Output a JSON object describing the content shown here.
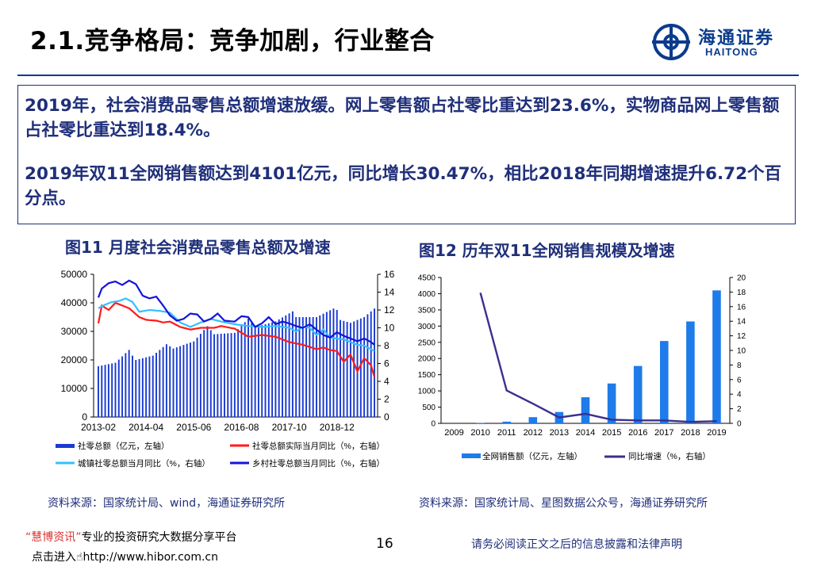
{
  "header": {
    "title": "2.1.竞争格局：竞争加剧，行业整合",
    "logo_text": "海通证券",
    "logo_sub": "HAITONG"
  },
  "textbox": {
    "para1": "2019年，社会消费品零售总额增速放缓。网上零售额占社零比重达到23.6%，实物商品网上零售额占社零比重达到18.4%。",
    "para2": "2019年双11全网销售额达到4101亿元，同比增长30.47%，相比2018年同期增速提升6.72个百分点。"
  },
  "fig11": {
    "title": "图11 月度社会消费品零售总额及增速",
    "source": "资料来源：国家统计局、wind，海通证券研究所"
  },
  "fig12": {
    "title": "图12  历年双11全网销售规模及增速",
    "source": "资料来源：国家统计局、星图数据公众号，海通证券研究所"
  },
  "footer": {
    "quote_name": "“慧博资讯”",
    "tagline": "专业的投资研究大数据分享平台",
    "link_prefix": "点击进入",
    "link_url": "http://www.hibor.com.cn",
    "page_number": "16",
    "disclaimer": "请务必阅读正文之后的信息披露和法律声明"
  },
  "colors": {
    "navy": "#1f2f7a",
    "bar_blue": "#1a3bd1",
    "red": "#ff1a1a",
    "light_blue": "#33c1ff",
    "dark_blue": "#1414d9",
    "bar2": "#1e7bea",
    "line2": "#3b2f8f"
  },
  "chart_data": [
    {
      "type": "bar",
      "title": "",
      "x_tick_labels": [
        "2013-02",
        "2014-04",
        "2015-06",
        "2016-08",
        "2017-10",
        "2018-12"
      ],
      "ylim_left": [
        0,
        50000
      ],
      "ylim_right": [
        0,
        16
      ],
      "y_ticks_left": [
        "0",
        "10000",
        "20000",
        "30000",
        "40000",
        "50000"
      ],
      "y_ticks_right": [
        "0",
        "2",
        "4",
        "6",
        "8",
        "10",
        "12",
        "14",
        "16"
      ],
      "legend": [
        {
          "name": "社零总额（亿元，左轴）",
          "color": "#1a3bd1",
          "kind": "bar"
        },
        {
          "name": "社零总额实际当月同比（%，右轴）",
          "color": "#ff1a1a",
          "kind": "line"
        },
        {
          "name": "城镇社零总额当月同比（%，右轴）",
          "color": "#33c1ff",
          "kind": "line"
        },
        {
          "name": "乡村社零总额当月同比（%，右轴）",
          "color": "#1414d9",
          "kind": "line"
        }
      ],
      "series": [
        {
          "name": "社零总额（亿元，左轴）",
          "anchors": [
            [
              0,
              17800
            ],
            [
              5,
              19000
            ],
            [
              9,
              23500
            ],
            [
              10,
              21500
            ],
            [
              11,
              20000
            ],
            [
              16,
              21500
            ],
            [
              20,
              25500
            ],
            [
              22,
              24000
            ],
            [
              28,
              26500
            ],
            [
              32,
              31800
            ],
            [
              34,
              29000
            ],
            [
              40,
              29500
            ],
            [
              44,
              34500
            ],
            [
              46,
              31500
            ],
            [
              52,
              33500
            ],
            [
              57,
              37000
            ],
            [
              58,
              35000
            ],
            [
              64,
              35000
            ],
            [
              69,
              38000
            ],
            [
              70,
              37500
            ],
            [
              71,
              34000
            ],
            [
              74,
              33000
            ],
            [
              78,
              35000
            ],
            [
              81,
              38000
            ]
          ]
        },
        {
          "name": "社零总额实际当月同比（%，右轴）",
          "anchors": [
            [
              0,
              10.5
            ],
            [
              1,
              12.5
            ],
            [
              3,
              12.0
            ],
            [
              5,
              12.8
            ],
            [
              7,
              12.5
            ],
            [
              9,
              12.2
            ],
            [
              12,
              11.2
            ],
            [
              14,
              10.9
            ],
            [
              17,
              10.8
            ],
            [
              19,
              10.6
            ],
            [
              21,
              10.7
            ],
            [
              24,
              10.1
            ],
            [
              27,
              9.8
            ],
            [
              30,
              10.0
            ],
            [
              32,
              10.0
            ],
            [
              34,
              10.0
            ],
            [
              36,
              10.2
            ],
            [
              40,
              9.9
            ],
            [
              44,
              9.0
            ],
            [
              48,
              9.2
            ],
            [
              52,
              9.0
            ],
            [
              56,
              8.4
            ],
            [
              60,
              8.1
            ],
            [
              64,
              7.6
            ],
            [
              66,
              7.8
            ],
            [
              68,
              7.5
            ],
            [
              70,
              7.4
            ],
            [
              72,
              6.2
            ],
            [
              74,
              7.0
            ],
            [
              76,
              5.1
            ],
            [
              78,
              6.6
            ],
            [
              80,
              5.8
            ],
            [
              81,
              4.5
            ]
          ]
        },
        {
          "name": "城镇社零总额当月同比（%，右轴）",
          "anchors": [
            [
              0,
              12.2
            ],
            [
              2,
              12.6
            ],
            [
              4,
              12.9
            ],
            [
              6,
              13.0
            ],
            [
              8,
              13.3
            ],
            [
              10,
              12.9
            ],
            [
              12,
              11.8
            ],
            [
              15,
              12.0
            ],
            [
              18,
              11.9
            ],
            [
              21,
              11.7
            ],
            [
              24,
              10.6
            ],
            [
              27,
              10.1
            ],
            [
              30,
              10.6
            ],
            [
              33,
              11.0
            ],
            [
              36,
              10.7
            ],
            [
              40,
              10.4
            ],
            [
              44,
              10.2
            ],
            [
              48,
              10.1
            ],
            [
              52,
              10.2
            ],
            [
              56,
              10.0
            ],
            [
              58,
              9.6
            ],
            [
              60,
              10.1
            ],
            [
              62,
              10.0
            ],
            [
              64,
              9.2
            ],
            [
              66,
              9.8
            ],
            [
              68,
              8.9
            ],
            [
              70,
              8.8
            ],
            [
              72,
              8.7
            ],
            [
              74,
              8.4
            ],
            [
              76,
              8.1
            ],
            [
              78,
              8.0
            ],
            [
              80,
              7.6
            ],
            [
              81,
              7.4
            ]
          ]
        },
        {
          "name": "乡村社零总额当月同比（%，右轴）",
          "anchors": [
            [
              0,
              13.4
            ],
            [
              1,
              14.4
            ],
            [
              3,
              15.0
            ],
            [
              5,
              15.2
            ],
            [
              7,
              14.8
            ],
            [
              9,
              15.3
            ],
            [
              11,
              14.9
            ],
            [
              13,
              13.6
            ],
            [
              15,
              13.3
            ],
            [
              17,
              13.5
            ],
            [
              19,
              12.5
            ],
            [
              21,
              11.4
            ],
            [
              23,
              10.8
            ],
            [
              25,
              11.0
            ],
            [
              27,
              11.6
            ],
            [
              29,
              11.5
            ],
            [
              31,
              10.7
            ],
            [
              33,
              11.0
            ],
            [
              35,
              11.6
            ],
            [
              37,
              10.8
            ],
            [
              40,
              10.7
            ],
            [
              42,
              11.3
            ],
            [
              44,
              11.2
            ],
            [
              46,
              10.1
            ],
            [
              48,
              10.5
            ],
            [
              50,
              11.2
            ],
            [
              52,
              10.4
            ],
            [
              54,
              10.7
            ],
            [
              56,
              10.5
            ],
            [
              58,
              10.2
            ],
            [
              60,
              10.0
            ],
            [
              62,
              10.4
            ],
            [
              64,
              9.8
            ],
            [
              66,
              9.2
            ],
            [
              68,
              8.9
            ],
            [
              70,
              9.5
            ],
            [
              72,
              9.1
            ],
            [
              74,
              8.8
            ],
            [
              76,
              8.5
            ],
            [
              78,
              8.8
            ],
            [
              80,
              8.4
            ],
            [
              81,
              8.1
            ]
          ]
        }
      ]
    },
    {
      "type": "bar",
      "title": "",
      "categories": [
        "2009",
        "2010",
        "2011",
        "2012",
        "2013",
        "2014",
        "2015",
        "2016",
        "2017",
        "2018",
        "2019"
      ],
      "ylim_left": [
        0,
        4500
      ],
      "ylim_right": [
        0,
        20
      ],
      "y_ticks_left": [
        "0",
        "500",
        "1000",
        "1500",
        "2000",
        "2500",
        "3000",
        "3500",
        "4000",
        "4500"
      ],
      "y_ticks_right": [
        "0",
        "2",
        "4",
        "6",
        "8",
        "10",
        "12",
        "14",
        "16",
        "18",
        "20"
      ],
      "legend": [
        {
          "name": "全网销售额（亿元，左轴）",
          "color": "#1e7bea",
          "kind": "bar"
        },
        {
          "name": "同比增速（%，右轴）",
          "color": "#3b2f8f",
          "kind": "line"
        }
      ],
      "series": [
        {
          "name": "全网销售额（亿元，左轴）",
          "values": [
            0.5,
            9.4,
            52,
            191,
            350,
            805,
            1229,
            1770,
            2540,
            3143,
            4101
          ]
        },
        {
          "name": "同比增速（%，右轴）",
          "values": [
            null,
            17.9,
            4.5,
            2.7,
            0.8,
            1.3,
            0.5,
            0.4,
            0.4,
            0.2,
            0.3
          ]
        }
      ]
    }
  ]
}
